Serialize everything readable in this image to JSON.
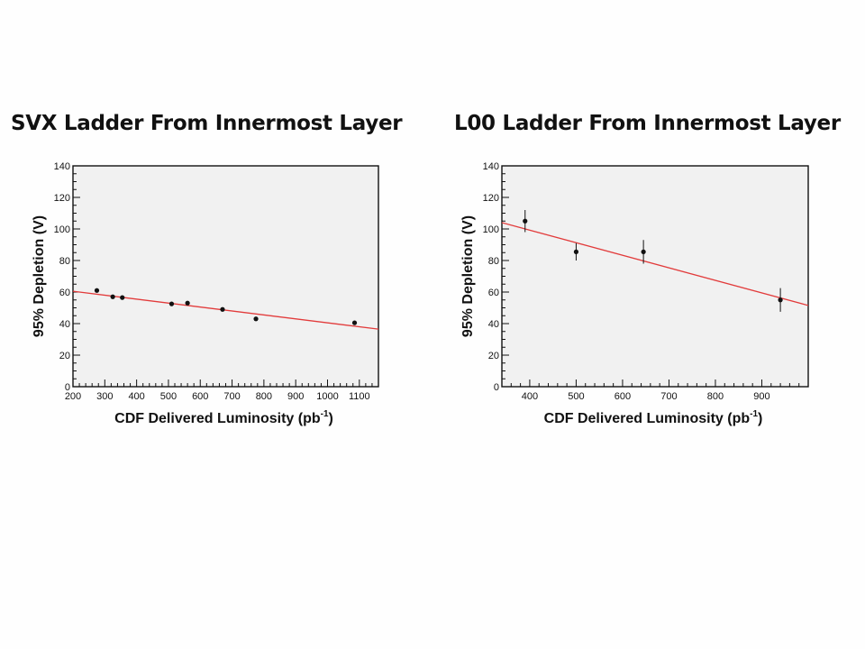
{
  "chart_data": [
    {
      "type": "scatter",
      "title": "SVX Ladder From Innermost Layer",
      "xlabel": "CDF Delivered Luminosity (pb",
      "xlabel_sup": "-1",
      "xlabel_end": ")",
      "ylabel": "95% Depletion (V)",
      "xlim": [
        200,
        1160
      ],
      "ylim": [
        0,
        140
      ],
      "xticks": [
        200,
        300,
        400,
        500,
        600,
        700,
        800,
        900,
        1000,
        1100
      ],
      "yticks": [
        0,
        20,
        40,
        60,
        80,
        100,
        120,
        140
      ],
      "grid": false,
      "series": [
        {
          "x": [
            275,
            325,
            355,
            510,
            560,
            670,
            775,
            1085
          ],
          "y": [
            61,
            57,
            56.5,
            52.5,
            53,
            49,
            43,
            40.5
          ],
          "yerr": [
            1,
            1,
            1,
            1,
            1,
            1,
            1,
            1
          ]
        }
      ],
      "fit_line": {
        "x": [
          200,
          1160
        ],
        "y": [
          60.5,
          36.5
        ],
        "color": "#e23b3b"
      }
    },
    {
      "type": "scatter",
      "title": "L00 Ladder From Innermost Layer",
      "xlabel": "CDF Delivered Luminosity (pb",
      "xlabel_sup": "-1",
      "xlabel_end": ")",
      "ylabel": "95% Depletion (V)",
      "xlim": [
        340,
        1000
      ],
      "ylim": [
        0,
        140
      ],
      "xticks": [
        400,
        500,
        600,
        700,
        800,
        900
      ],
      "yticks": [
        0,
        20,
        40,
        60,
        80,
        100,
        120,
        140
      ],
      "grid": false,
      "series": [
        {
          "x": [
            390,
            500,
            645,
            940
          ],
          "y": [
            105,
            85.5,
            85.5,
            55
          ],
          "yerr": [
            7,
            5.5,
            7.5,
            7.5
          ]
        }
      ],
      "fit_line": {
        "x": [
          340,
          1000
        ],
        "y": [
          104,
          51.5
        ],
        "color": "#e23b3b"
      }
    }
  ]
}
